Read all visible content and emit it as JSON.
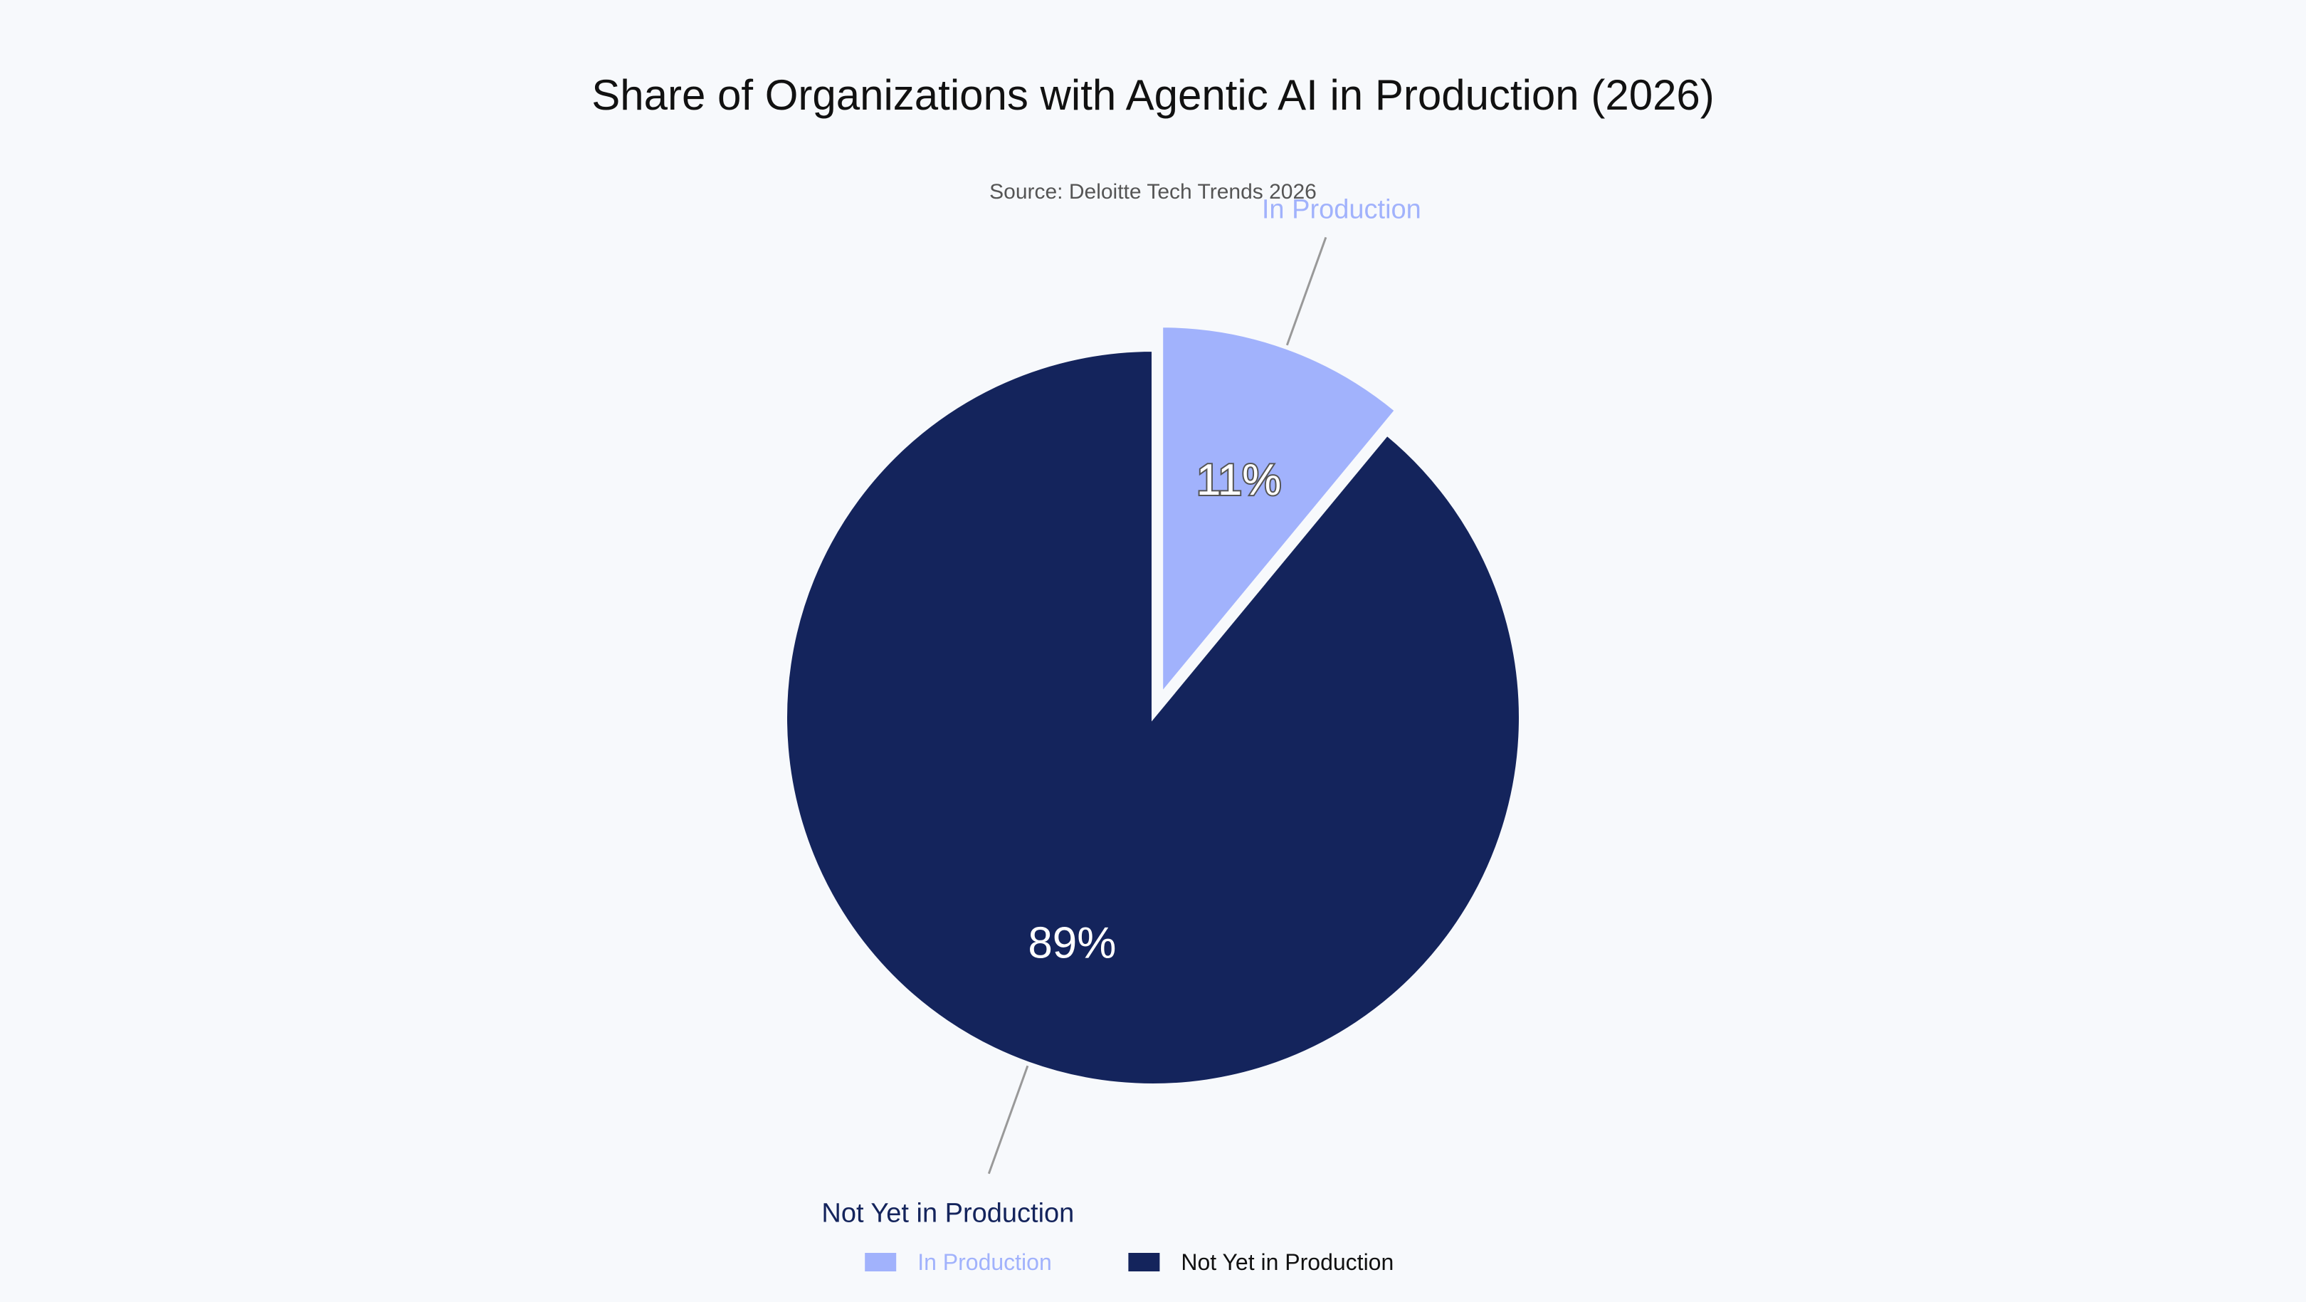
{
  "chart_data": {
    "type": "pie",
    "title": "Share of Organizations with Agentic AI in Production (2026)",
    "subtitle": "Source: Deloitte Tech Trends 2026",
    "legend_position": "bottom",
    "start_angle_deg": 0,
    "direction": "clockwise",
    "slices": [
      {
        "label": "In Production",
        "value": 11,
        "value_label": "11%",
        "color": "#A1B2FC",
        "pulled": true
      },
      {
        "label": "Not Yet in Production",
        "value": 89,
        "value_label": "89%",
        "color": "#14245C",
        "pulled": false
      }
    ]
  },
  "colors": {
    "background": "#F7F9FC",
    "leader_line": "#999999",
    "inside_text_light": "#FFFFFF"
  }
}
